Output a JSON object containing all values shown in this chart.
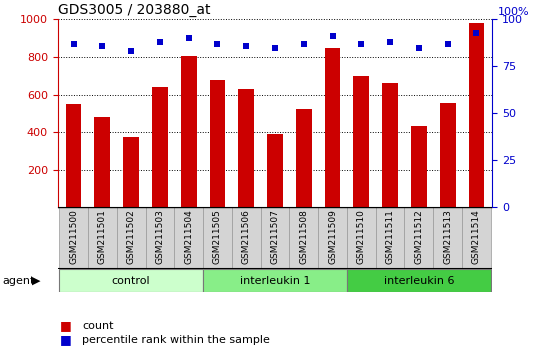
{
  "title": "GDS3005 / 203880_at",
  "samples": [
    "GSM211500",
    "GSM211501",
    "GSM211502",
    "GSM211503",
    "GSM211504",
    "GSM211505",
    "GSM211506",
    "GSM211507",
    "GSM211508",
    "GSM211509",
    "GSM211510",
    "GSM211511",
    "GSM211512",
    "GSM211513",
    "GSM211514"
  ],
  "counts": [
    550,
    480,
    375,
    640,
    805,
    675,
    630,
    390,
    525,
    850,
    700,
    660,
    430,
    555,
    980
  ],
  "percentile_ranks": [
    87,
    86,
    83,
    88,
    90,
    87,
    86,
    85,
    87,
    91,
    87,
    88,
    85,
    87,
    93
  ],
  "groups": [
    {
      "label": "control",
      "start": 0,
      "end": 4,
      "color": "#ccffcc"
    },
    {
      "label": "interleukin 1",
      "start": 5,
      "end": 9,
      "color": "#88ee88"
    },
    {
      "label": "interleukin 6",
      "start": 10,
      "end": 14,
      "color": "#44cc44"
    }
  ],
  "bar_color": "#cc0000",
  "dot_color": "#0000cc",
  "ylim_left": [
    0,
    1000
  ],
  "ylim_right": [
    0,
    100
  ],
  "yticks_left": [
    200,
    400,
    600,
    800,
    1000
  ],
  "yticks_right": [
    0,
    25,
    50,
    75,
    100
  ],
  "background_color": "#ffffff",
  "plot_bg_color": "#ffffff",
  "bar_width": 0.55,
  "agent_label": "agent"
}
